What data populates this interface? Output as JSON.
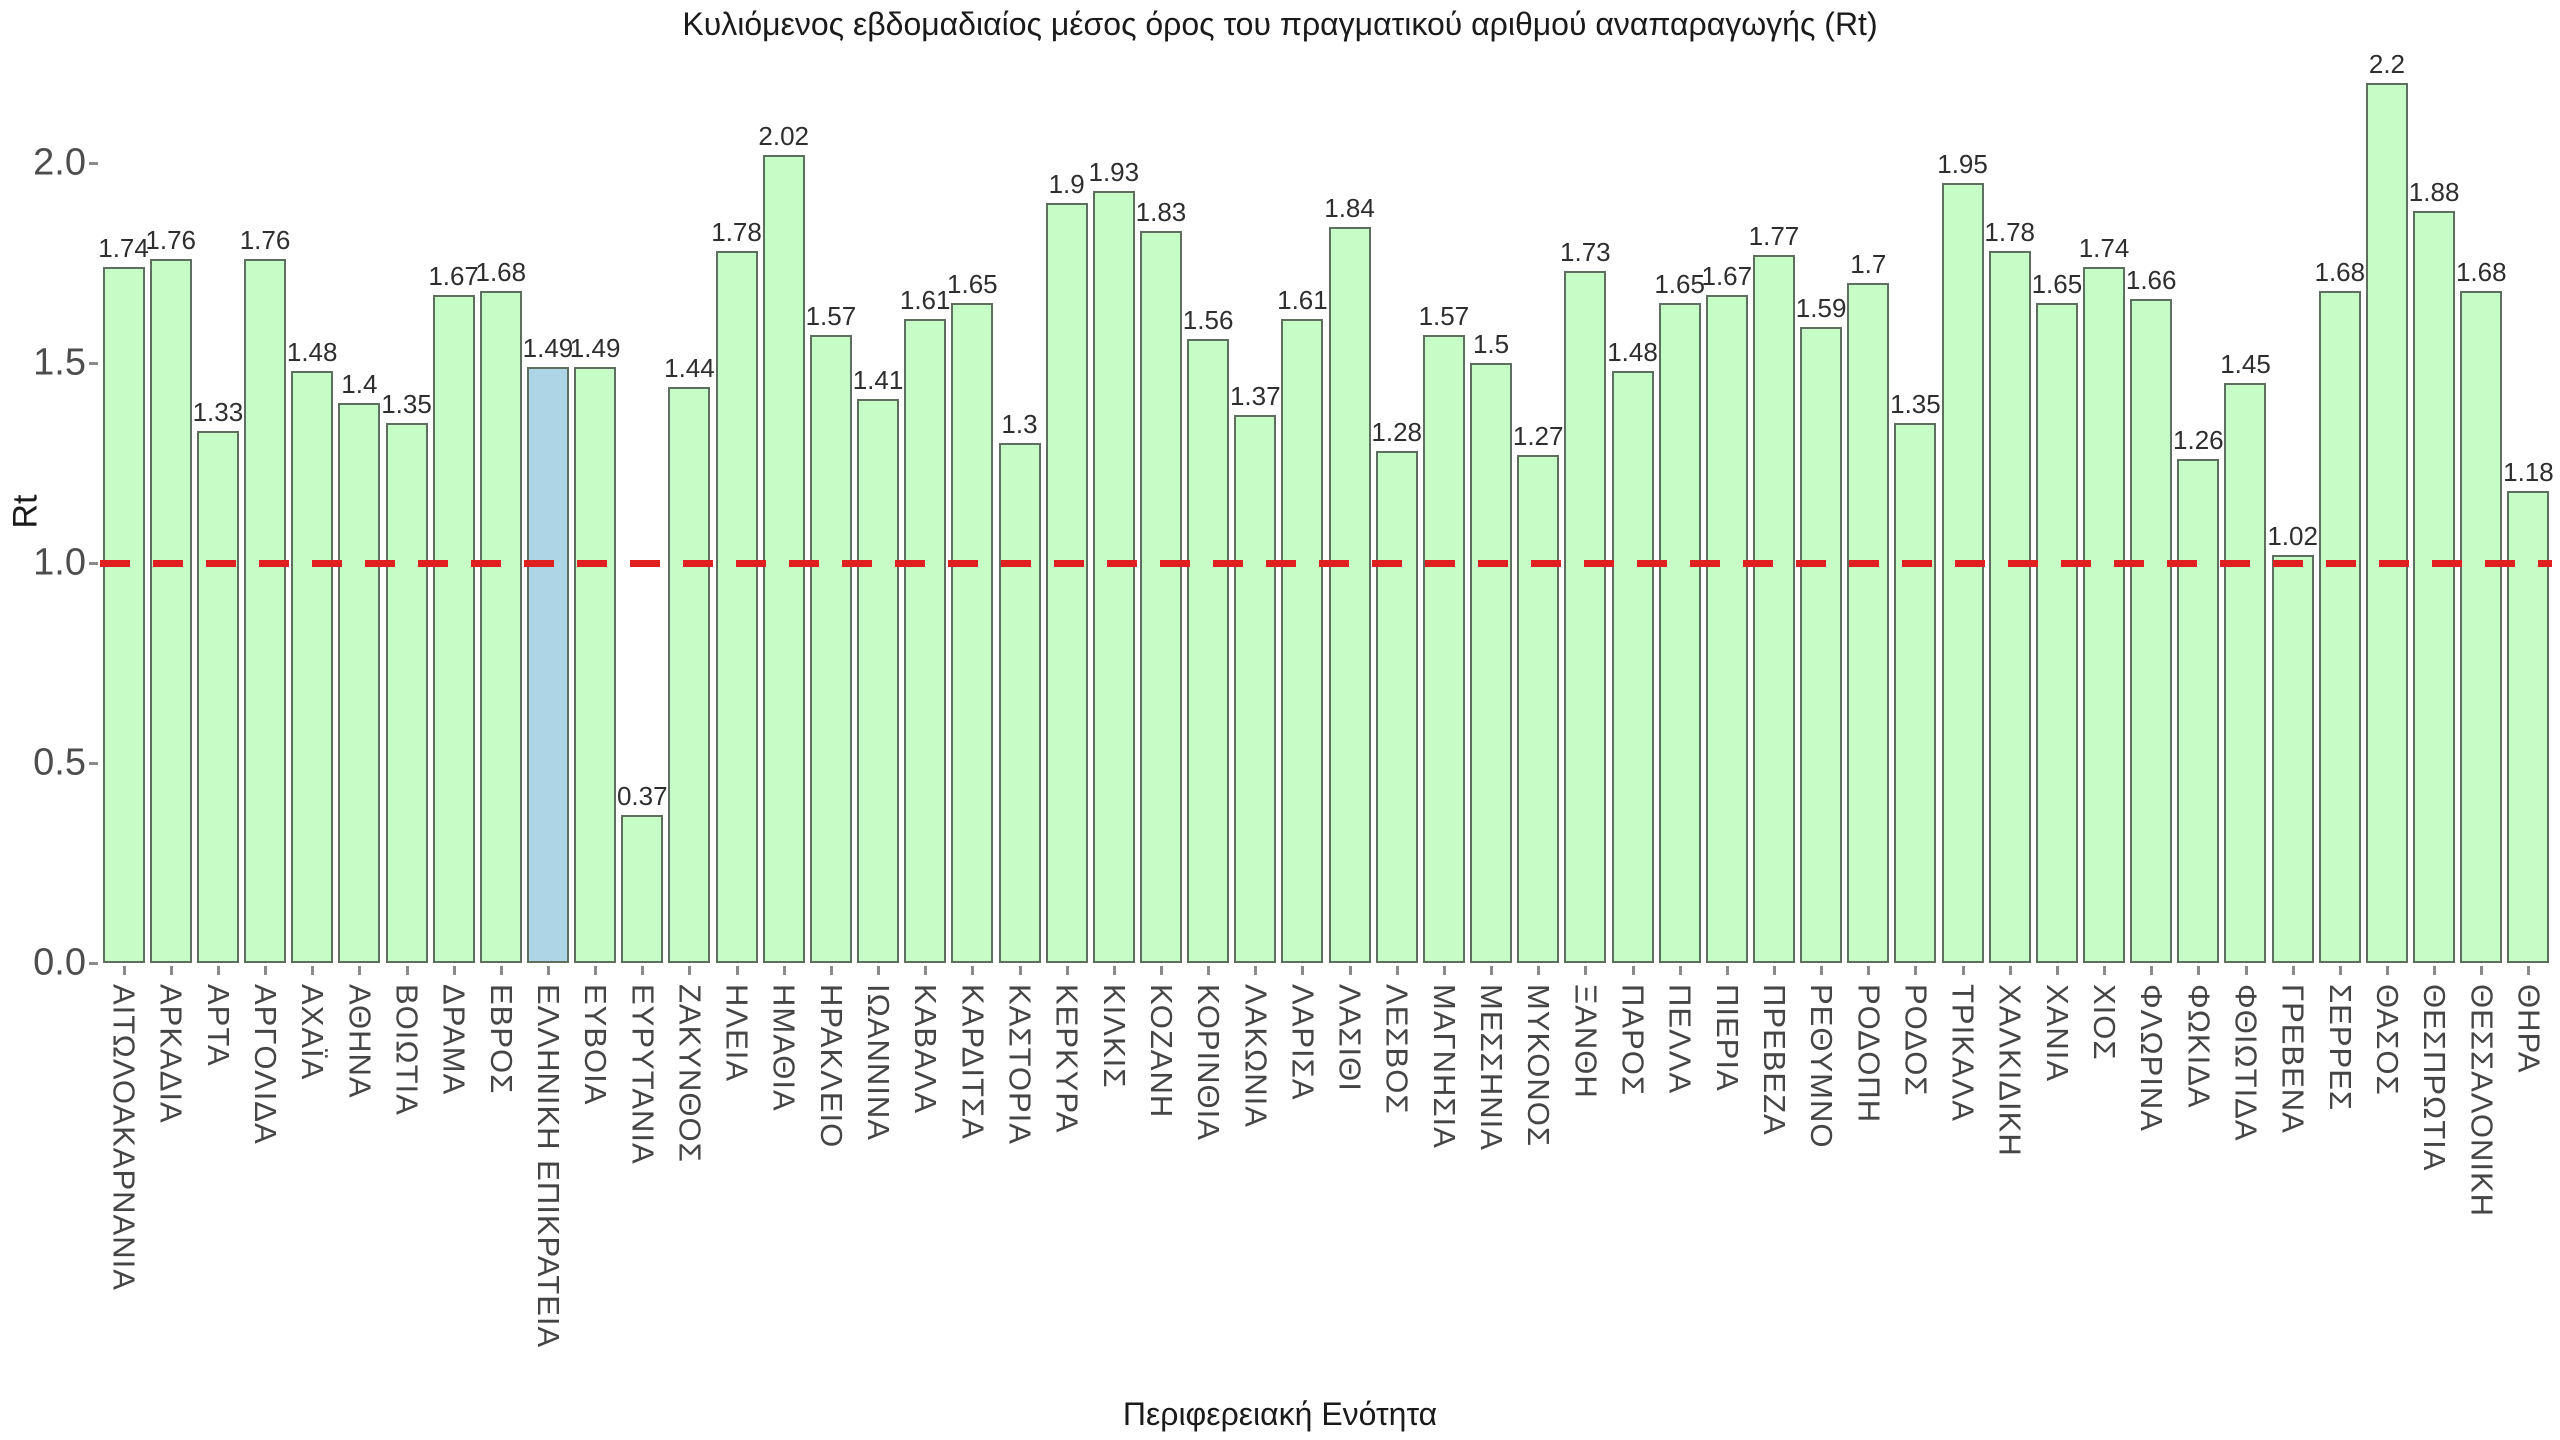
{
  "title": "Κυλιόμενος εβδομαδιαίος μέσος όρος του πραγματικού αριθμού αναπαραγωγής (Rt)",
  "x_axis_title": "Περιφερειακή Ενότητα",
  "y_axis_title": "Rt",
  "colors": {
    "bar_fill": "#c6fcc6",
    "highlight_fill": "#aed5e6",
    "bar_border": "#5f6f5f",
    "reference_line": "#e02020",
    "background": "#ffffff"
  },
  "chart_data": {
    "type": "bar",
    "title": "Κυλιόμενος εβδομαδιαίος μέσος όρος του πραγματικού αριθμού αναπαραγωγής (Rt)",
    "xlabel": "Περιφερειακή Ενότητα",
    "ylabel": "Rt",
    "ylim": [
      0,
      2.3
    ],
    "grid": false,
    "legend": "none",
    "reference_line_y": 1.0,
    "reference_line_style": "dashed-red",
    "ytick_labels": [
      "0.0",
      "0.5",
      "1.0",
      "1.5",
      "2.0"
    ],
    "ytick_values": [
      0,
      0.5,
      1.0,
      1.5,
      2.0
    ],
    "highlight_index": 9,
    "highlight_category": "ΕΛΛΗΝΙΚΗ ΕΠΙΚΡΑΤΕΙΑ",
    "categories": [
      "ΑΙΤΩΛΟΑΚΑΡΝΑΝΙΑ",
      "ΑΡΚΑΔΙΑ",
      "ΑΡΤΑ",
      "ΑΡΓΟΛΙΔΑ",
      "ΑΧΑΪΑ",
      "ΑΘΗΝΑ",
      "ΒΟΙΩΤΙΑ",
      "ΔΡΑΜΑ",
      "ΕΒΡΟΣ",
      "ΕΛΛΗΝΙΚΗ ΕΠΙΚΡΑΤΕΙΑ",
      "ΕΥΒΟΙΑ",
      "ΕΥΡΥΤΑΝΙΑ",
      "ΖΑΚΥΝΘΟΣ",
      "ΗΛΕΙΑ",
      "ΗΜΑΘΙΑ",
      "ΗΡΑΚΛΕΙΟ",
      "ΙΩΑΝΝΙΝΑ",
      "ΚΑΒΑΛΑ",
      "ΚΑΡΔΙΤΣΑ",
      "ΚΑΣΤΟΡΙΑ",
      "ΚΕΡΚΥΡΑ",
      "ΚΙΛΚΙΣ",
      "ΚΟΖΑΝΗ",
      "ΚΟΡΙΝΘΙΑ",
      "ΛΑΚΩΝΙΑ",
      "ΛΑΡΙΣΑ",
      "ΛΑΣΙΘΙ",
      "ΛΕΣΒΟΣ",
      "ΜΑΓΝΗΣΙΑ",
      "ΜΕΣΣΗΝΙΑ",
      "ΜΥΚΟΝΟΣ",
      "ΞΑΝΘΗ",
      "ΠΑΡΟΣ",
      "ΠΕΛΛΑ",
      "ΠΙΕΡΙΑ",
      "ΠΡΕΒΕΖΑ",
      "ΡΕΘΥΜΝΟ",
      "ΡΟΔΟΠΗ",
      "ΡΟΔΟΣ",
      "ΤΡΙΚΑΛΑ",
      "ΧΑΛΚΙΔΙΚΗ",
      "ΧΑΝΙΑ",
      "ΧΙΟΣ",
      "ΦΛΩΡΙΝΑ",
      "ΦΩΚΙΔΑ",
      "ΦΘΙΩΤΙΔΑ",
      "ΓΡΕΒΕΝΑ",
      "ΣΕΡΡΕΣ",
      "ΘΑΣΟΣ",
      "ΘΕΣΠΡΩΤΙΑ",
      "ΘΕΣΣΑΛΟΝΙΚΗ",
      "ΘΗΡΑ"
    ],
    "values": [
      1.74,
      1.76,
      1.33,
      1.76,
      1.48,
      1.4,
      1.35,
      1.67,
      1.68,
      1.49,
      1.49,
      0.37,
      1.44,
      1.78,
      2.02,
      1.57,
      1.41,
      1.61,
      1.65,
      1.3,
      1.9,
      1.93,
      1.83,
      1.56,
      1.37,
      1.61,
      1.84,
      1.28,
      1.57,
      1.5,
      1.27,
      1.73,
      1.48,
      1.65,
      1.67,
      1.77,
      1.59,
      1.7,
      1.35,
      1.95,
      1.78,
      1.65,
      1.74,
      1.66,
      1.26,
      1.45,
      1.02,
      1.68,
      2.2,
      1.88,
      1.68,
      1.18
    ]
  }
}
